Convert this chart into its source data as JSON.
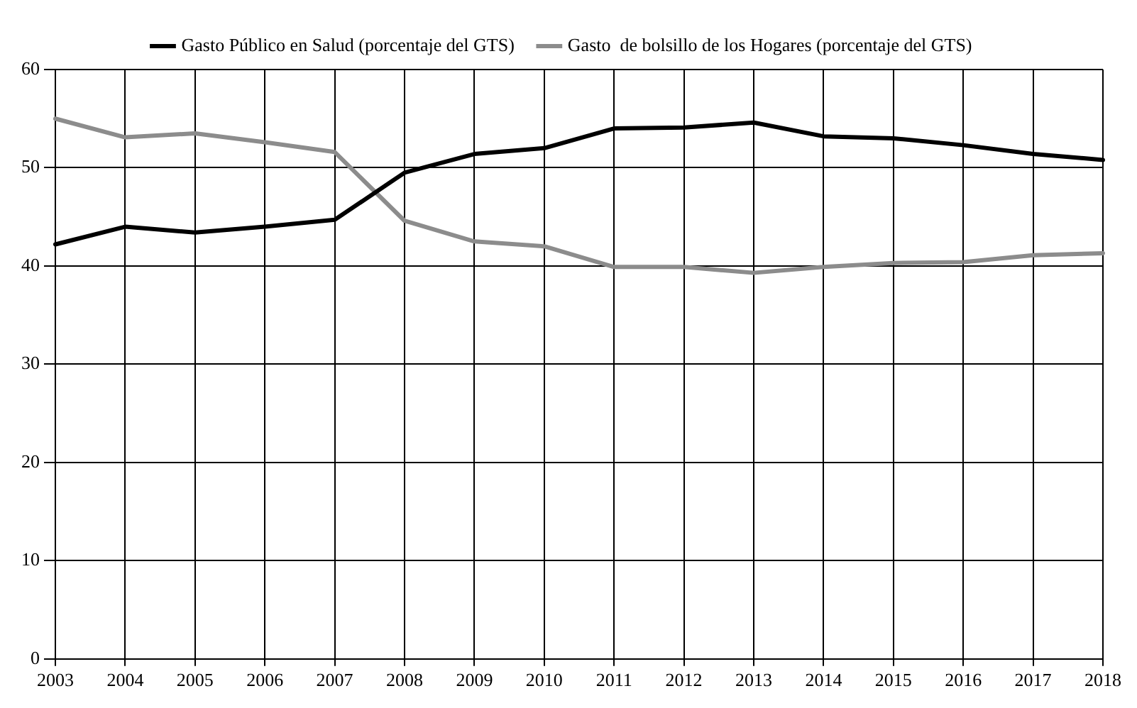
{
  "chart_data": {
    "type": "line",
    "categories": [
      "2003",
      "2004",
      "2005",
      "2006",
      "2007",
      "2008",
      "2009",
      "2010",
      "2011",
      "2012",
      "2013",
      "2014",
      "2015",
      "2016",
      "2017",
      "2018"
    ],
    "series": [
      {
        "name": "Gasto Público en Salud (porcentaje del GTS)",
        "color": "#000000",
        "values": [
          42.2,
          44.0,
          43.4,
          44.0,
          44.7,
          49.5,
          51.4,
          52.0,
          54.0,
          54.1,
          54.6,
          53.2,
          53.0,
          52.3,
          51.4,
          50.8
        ]
      },
      {
        "name": "Gasto  de bolsillo de los Hogares (porcentaje del GTS)",
        "color": "#8c8c8c",
        "values": [
          55.0,
          53.1,
          53.5,
          52.6,
          51.6,
          44.6,
          42.5,
          42.0,
          39.9,
          39.9,
          39.3,
          39.9,
          40.3,
          40.4,
          41.1,
          41.3
        ]
      }
    ],
    "ylim": [
      0,
      60
    ],
    "yticks": [
      0,
      10,
      20,
      30,
      40,
      50,
      60
    ],
    "grid": true,
    "legend": "top",
    "marker": "none",
    "line_style": "solid"
  }
}
